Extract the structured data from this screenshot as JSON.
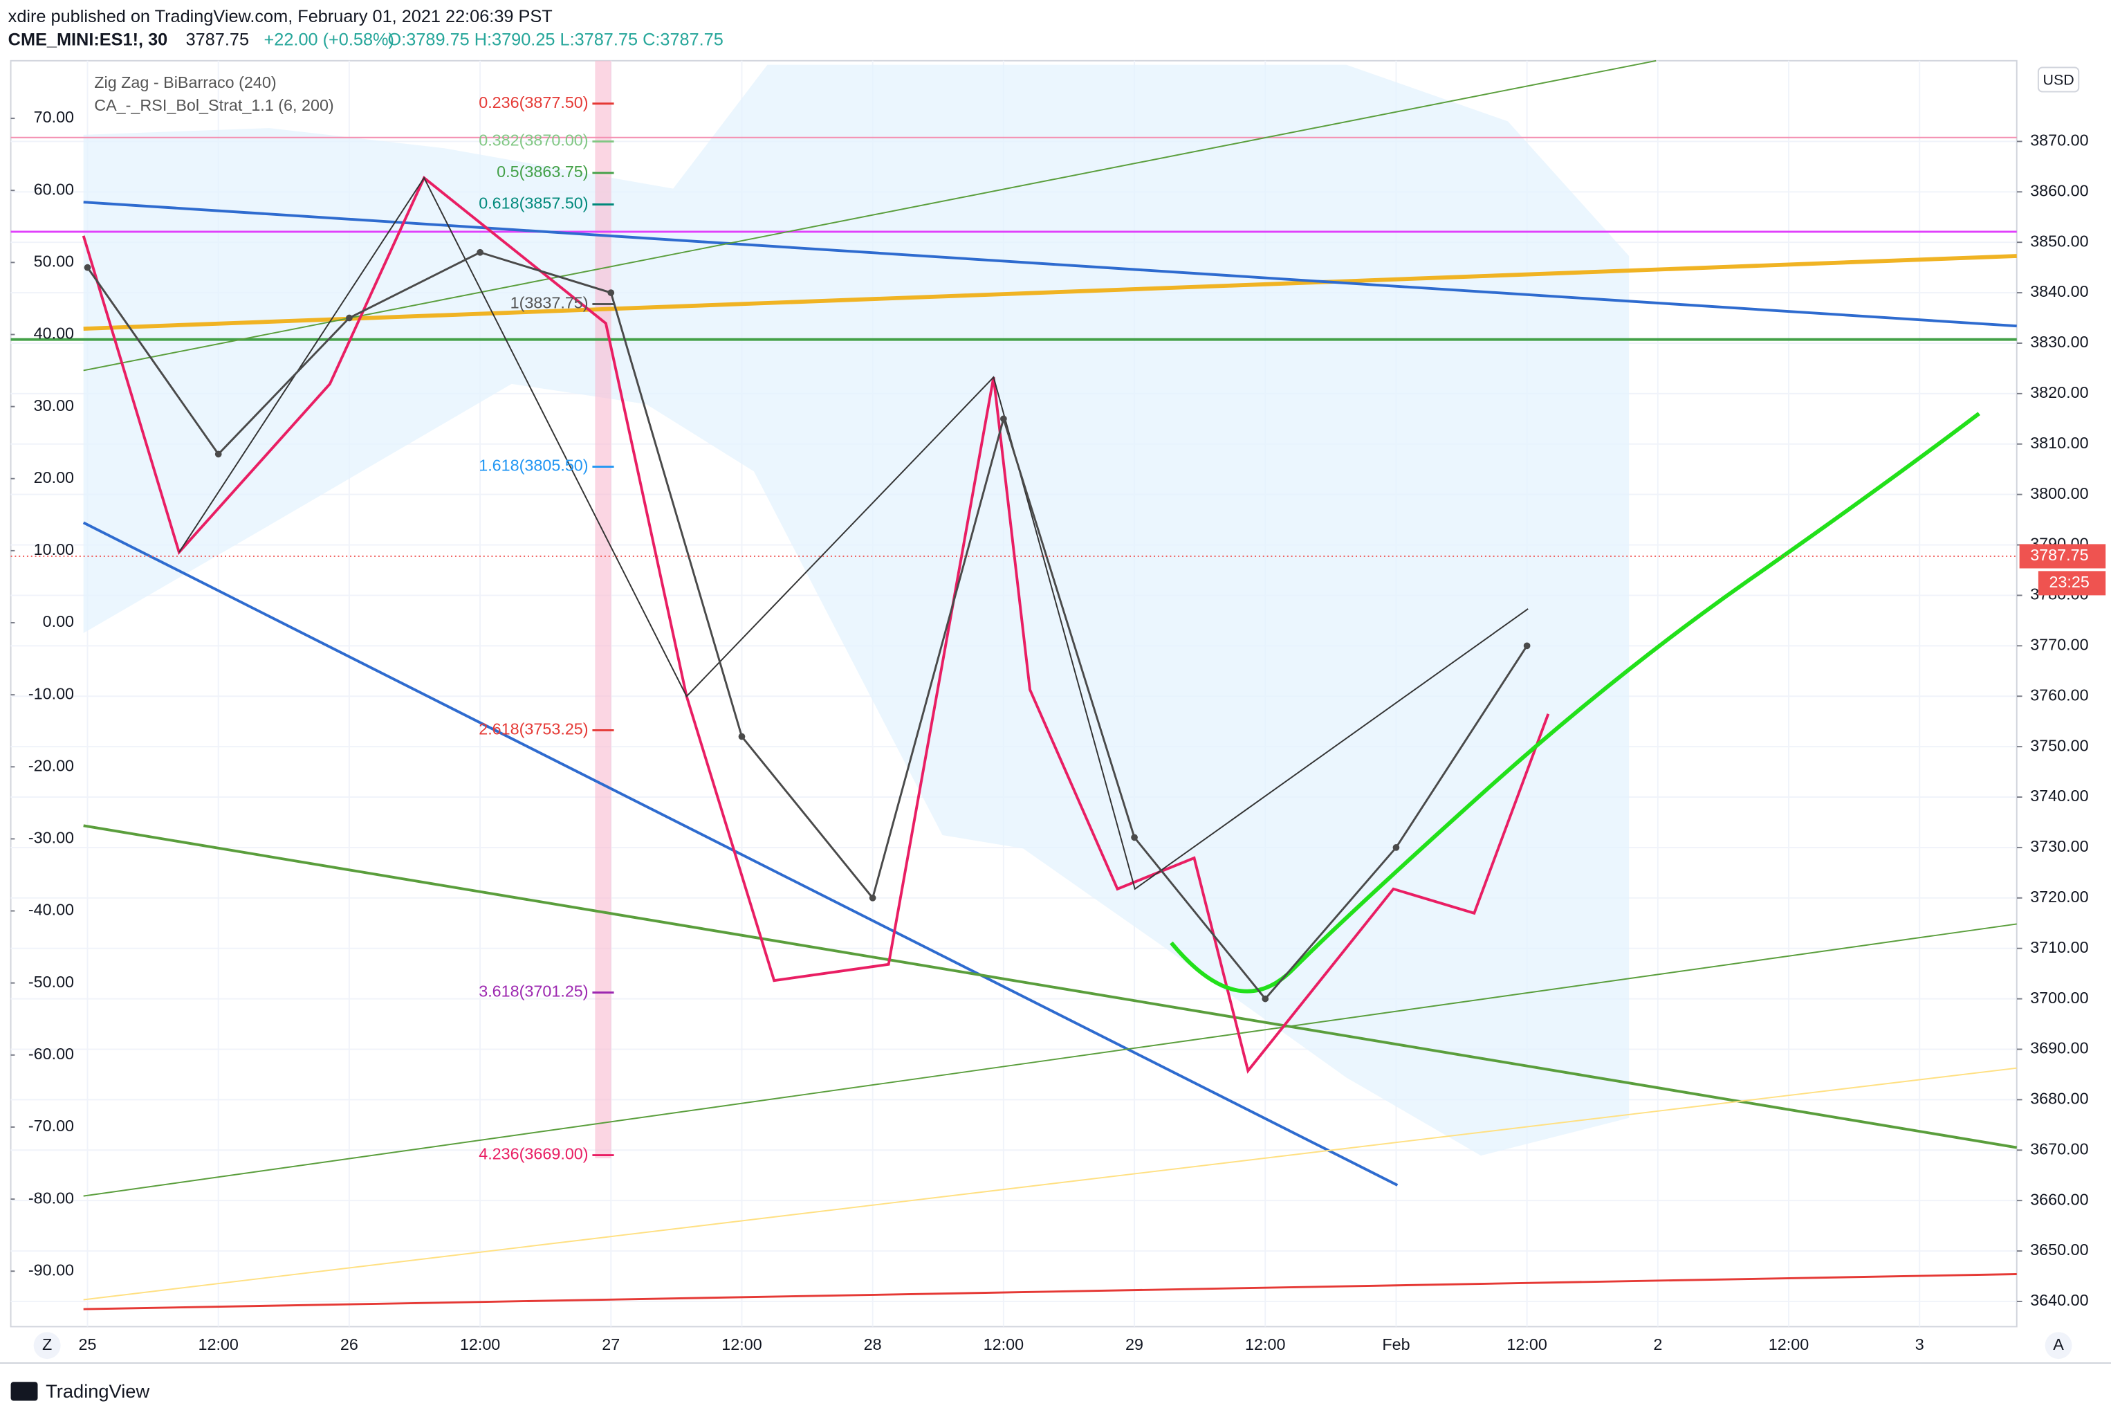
{
  "header": {
    "publisher": "xdire published on TradingView.com, February 01, 2021 22:06:39 PST",
    "symbol": "CME_MINI:ES1!, 30",
    "price": "3787.75",
    "change": "+22.00 (+0.58%)",
    "ohlc": "O:3789.75 H:3790.25 L:3787.75 C:3787.75"
  },
  "indicators": [
    "Zig Zag - BiBarraco (240)",
    "CA_-_RSI_Bol_Strat_1.1 (6, 200)"
  ],
  "chart_data": {
    "type": "line",
    "categories": [
      "25",
      "12:00",
      "26",
      "12:00",
      "27",
      "12:00",
      "28",
      "12:00",
      "29",
      "12:00",
      "Feb",
      "12:00",
      "2",
      "12:00",
      "3"
    ],
    "series": [
      {
        "name": "ES1!",
        "color": "#4a4a4a",
        "values": [
          3845,
          3808,
          3835,
          3848,
          3840,
          3752,
          3720,
          3815,
          3732,
          3700,
          3730,
          3770,
          null,
          null,
          null
        ]
      }
    ],
    "ylim": [
      3635,
      3886
    ],
    "yticks": [
      {
        "value": 3640,
        "label": "3640.00"
      },
      {
        "value": 3650,
        "label": "3650.00"
      },
      {
        "value": 3660,
        "label": "3660.00"
      },
      {
        "value": 3670,
        "label": "3670.00"
      },
      {
        "value": 3680,
        "label": "3680.00"
      },
      {
        "value": 3690,
        "label": "3690.00"
      },
      {
        "value": 3700,
        "label": "3700.00"
      },
      {
        "value": 3710,
        "label": "3710.00"
      },
      {
        "value": 3720,
        "label": "3720.00"
      },
      {
        "value": 3730,
        "label": "3730.00"
      },
      {
        "value": 3740,
        "label": "3740.00"
      },
      {
        "value": 3750,
        "label": "3750.00"
      },
      {
        "value": 3760,
        "label": "3760.00"
      },
      {
        "value": 3770,
        "label": "3770.00"
      },
      {
        "value": 3780,
        "label": "3780.00"
      },
      {
        "value": 3790,
        "label": "3790.00"
      },
      {
        "value": 3800,
        "label": "3800.00"
      },
      {
        "value": 3810,
        "label": "3810.00"
      },
      {
        "value": 3820,
        "label": "3820.00"
      },
      {
        "value": 3830,
        "label": "3830.00"
      },
      {
        "value": 3840,
        "label": "3840.00"
      },
      {
        "value": 3850,
        "label": "3850.00"
      },
      {
        "value": 3860,
        "label": "3860.00"
      },
      {
        "value": 3870,
        "label": "3870.00"
      }
    ],
    "y2lim": [
      -97.7,
      78
    ],
    "y2ticks": [
      {
        "value": 70,
        "label": "70.00"
      },
      {
        "value": 60,
        "label": "60.00"
      },
      {
        "value": 50,
        "label": "50.00"
      },
      {
        "value": 40,
        "label": "40.00"
      },
      {
        "value": 30,
        "label": "30.00"
      },
      {
        "value": 20,
        "label": "20.00"
      },
      {
        "value": 10,
        "label": "10.00"
      },
      {
        "value": 0,
        "label": "0.00"
      },
      {
        "value": -10,
        "label": "-10.00"
      },
      {
        "value": -20,
        "label": "-20.00"
      },
      {
        "value": -30,
        "label": "-30.00"
      },
      {
        "value": -40,
        "label": "-40.00"
      },
      {
        "value": -50,
        "label": "-50.00"
      },
      {
        "value": -60,
        "label": "-60.00"
      },
      {
        "value": -70,
        "label": "-70.00"
      },
      {
        "value": -80,
        "label": "-80.00"
      },
      {
        "value": -90,
        "label": "-90.00"
      }
    ],
    "fib_levels": [
      {
        "label": "0.236(3877.50)",
        "value": 3877.5,
        "color": "#e53935"
      },
      {
        "label": "0.382(3870.00)",
        "value": 3870,
        "color": "#81c784"
      },
      {
        "label": "0.5(3863.75)",
        "value": 3863.75,
        "color": "#43a047"
      },
      {
        "label": "0.618(3857.50)",
        "value": 3857.5,
        "color": "#00897b"
      },
      {
        "label": "1(3837.75)",
        "value": 3837.75,
        "color": "#555555"
      },
      {
        "label": "1.618(3805.50)",
        "value": 3805.5,
        "color": "#2196f3"
      },
      {
        "label": "2.618(3753.25)",
        "value": 3753.25,
        "color": "#e53935"
      },
      {
        "label": "3.618(3701.25)",
        "value": 3701.25,
        "color": "#9c27b0"
      },
      {
        "label": "4.236(3669.00)",
        "value": 3669,
        "color": "#e91e63"
      }
    ],
    "last_price": 3787.75,
    "countdown": "23:25",
    "currency": "USD",
    "grid": true
  },
  "toolbar": {
    "left": "Z",
    "right": "A"
  },
  "footer": "TradingView"
}
